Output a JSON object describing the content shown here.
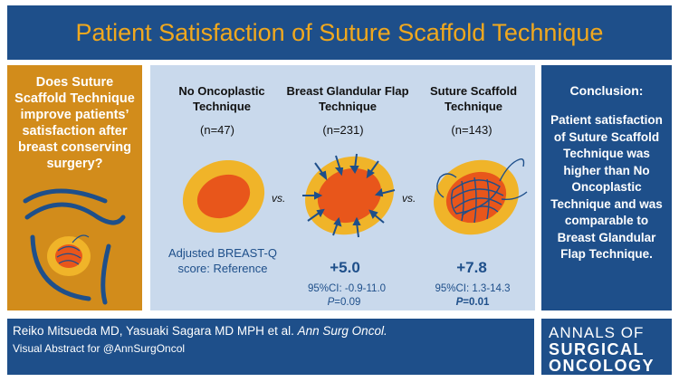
{
  "title": "Patient Satisfaction of Suture Scaffold Technique",
  "question": "Does Suture Scaffold Technique improve patients’ satisfaction after breast conserving surgery?",
  "columns": [
    {
      "heading": "No Oncoplastic Technique",
      "n": "(n=47)"
    },
    {
      "heading": "Breast Glandular Flap Technique",
      "n": "(n=231)"
    },
    {
      "heading": "Suture Scaffold Technique",
      "n": "(n=143)"
    }
  ],
  "vs": "vs.",
  "results": {
    "reference": "Adjusted BREAST-Q score: Reference",
    "glandular": {
      "value": "+5.0",
      "ci": "95%CI: -0.9-11.0",
      "p_label": "P",
      "p_value": "=0.09"
    },
    "scaffold": {
      "value": "+7.8",
      "ci": "95%CI: 1.3-14.3",
      "p_label": "P",
      "p_value": "=0.01"
    }
  },
  "conclusion": {
    "title": "Conclusion:",
    "text": "Patient satisfaction of Suture Scaffold Technique was higher than No Oncoplastic Technique and was comparable to Breast Glandular Flap Technique."
  },
  "footer": {
    "authors": "Reiko Mitsueda MD, Yasuaki Sagara MD MPH et al.",
    "journal": "Ann Surg Oncol.",
    "visual_abstract": "Visual Abstract for @AnnSurgOncol"
  },
  "brand": {
    "line1": "ANNALS OF",
    "line2": "SURGICAL",
    "line3": "ONCOLOGY"
  },
  "colors": {
    "navy": "#1e4f8a",
    "gold": "#d28c1b",
    "title_gold": "#f0a81e",
    "panel": "#c9d9ec",
    "tumor": "#e8561b",
    "breast": "#f0b429"
  }
}
